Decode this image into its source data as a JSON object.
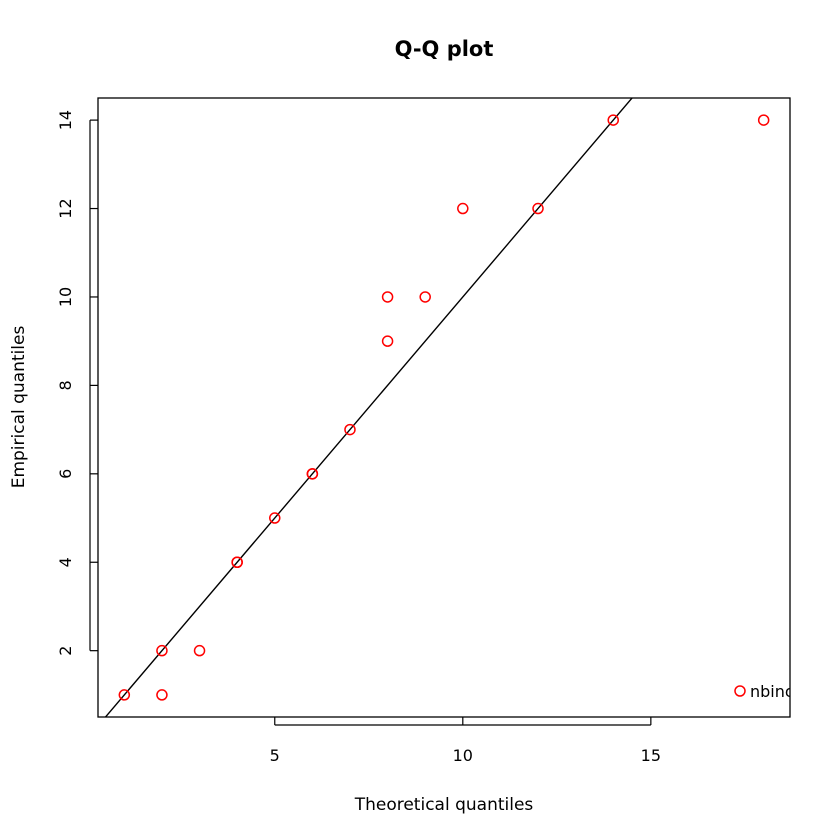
{
  "chart_data": {
    "type": "scatter",
    "title": "Q-Q plot",
    "xlabel": "Theoretical quantiles",
    "ylabel": "Empirical quantiles",
    "xlim": [
      0.3,
      18.7
    ],
    "ylim": [
      0.5,
      14.5
    ],
    "x_ticks": [
      5,
      10,
      15
    ],
    "y_ticks": [
      2,
      4,
      6,
      8,
      10,
      12,
      14
    ],
    "grid": false,
    "reference_line": {
      "slope": 1,
      "intercept": 0,
      "color": "#000000"
    },
    "legend": {
      "position": "bottom-right",
      "entries": [
        {
          "label": "nbinom",
          "color": "#ff0000",
          "marker": "open-circle"
        }
      ]
    },
    "series": [
      {
        "color": "#ff0000",
        "marker": "open-circle",
        "x": [
          1,
          2,
          2,
          3,
          4,
          4,
          5,
          6,
          6,
          7,
          8,
          8,
          9,
          10,
          12,
          14,
          18
        ],
        "y": [
          1,
          1,
          2,
          2,
          4,
          4,
          5,
          6,
          6,
          7,
          9,
          10,
          10,
          12,
          12,
          14,
          14
        ]
      }
    ]
  }
}
